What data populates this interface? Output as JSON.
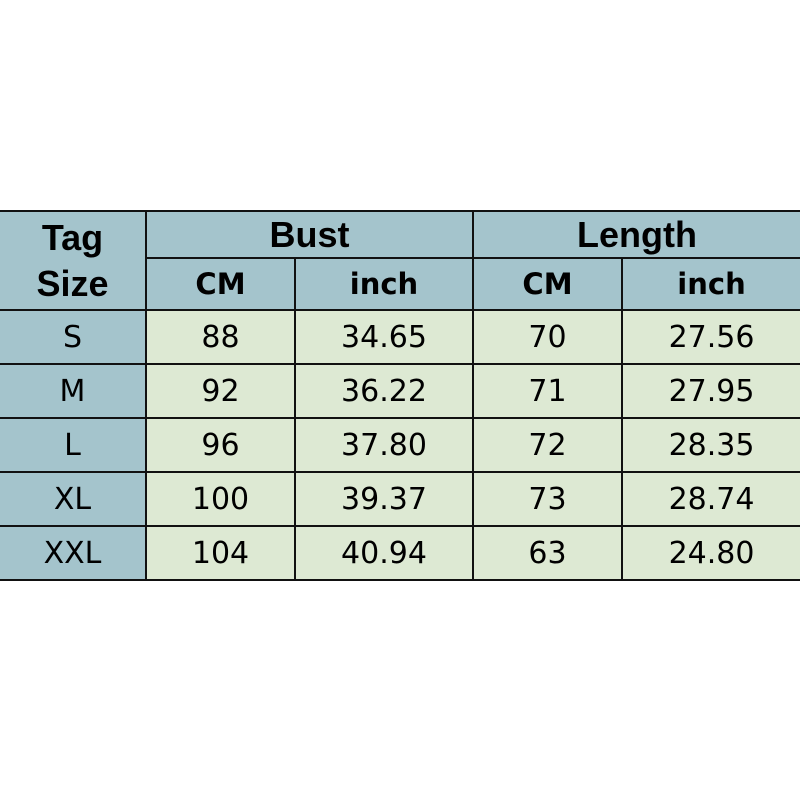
{
  "header": {
    "tag_line1": "Tag",
    "tag_line2": "Size",
    "bust": "Bust",
    "length": "Length",
    "units": [
      "CM",
      "inch",
      "CM",
      "inch"
    ]
  },
  "rows": [
    {
      "size": "S",
      "bust_cm": "88",
      "bust_inch": "34.65",
      "length_cm": "70",
      "length_inch": "27.56"
    },
    {
      "size": "M",
      "bust_cm": "92",
      "bust_inch": "36.22",
      "length_cm": "71",
      "length_inch": "27.95"
    },
    {
      "size": "L",
      "bust_cm": "96",
      "bust_inch": "37.80",
      "length_cm": "72",
      "length_inch": "28.35"
    },
    {
      "size": "XL",
      "bust_cm": "100",
      "bust_inch": "39.37",
      "length_cm": "73",
      "length_inch": "28.74"
    },
    {
      "size": "XXL",
      "bust_cm": "104",
      "bust_inch": "40.94",
      "length_cm": "63",
      "length_inch": "24.80"
    }
  ],
  "colors": {
    "header": "#a4c4cc",
    "body": "#dde9d3",
    "border": "#111111"
  }
}
